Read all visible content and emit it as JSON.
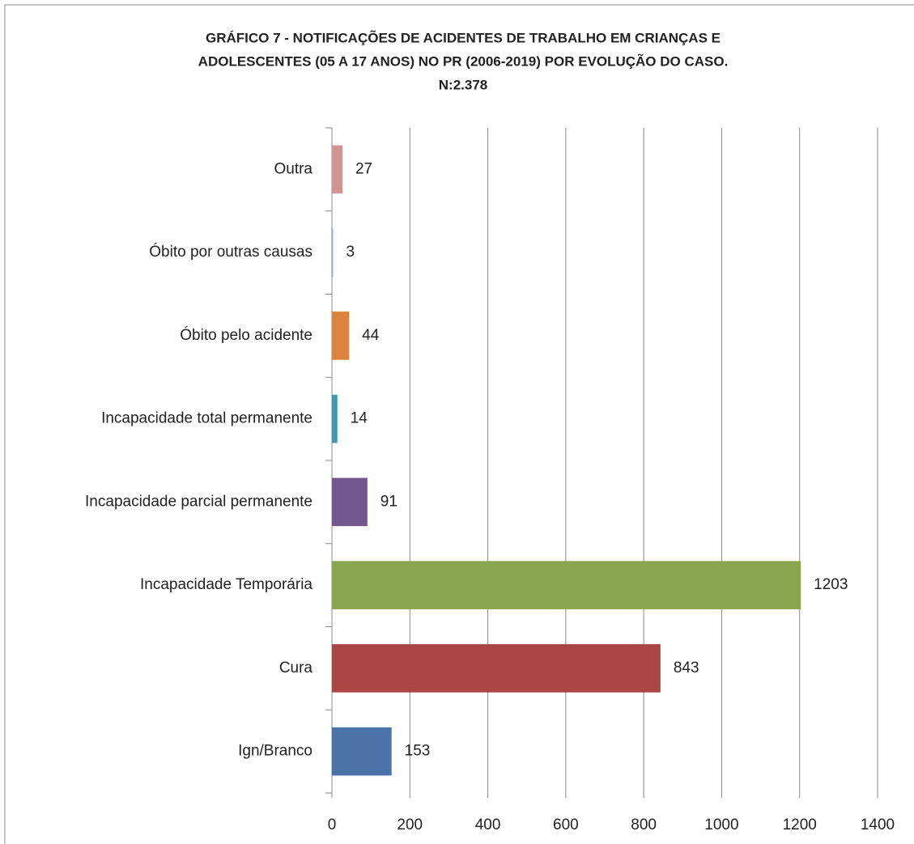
{
  "chart_data": {
    "type": "bar",
    "orientation": "horizontal",
    "title": [
      "GRÁFICO 7 - NOTIFICAÇÕES DE ACIDENTES DE TRABALHO EM CRIANÇAS E",
      "ADOLESCENTES (05 A 17 ANOS) NO PR (2006-2019) POR EVOLUÇÃO DO CASO.",
      "N:2.378"
    ],
    "categories": [
      "Ign/Branco",
      "Cura",
      "Incapacidade Temporária",
      "Incapacidade parcial permanente",
      "Incapacidade total permanente",
      "Óbito pelo acidente",
      "Óbito por outras causas",
      "Outra"
    ],
    "values": [
      153,
      843,
      1203,
      91,
      14,
      44,
      3,
      27
    ],
    "colors": [
      "#4a72a8",
      "#aa4644",
      "#89a54e",
      "#71588f",
      "#4298af",
      "#db843d",
      "#93a9cf",
      "#d09493"
    ],
    "xlim": [
      0,
      1400
    ],
    "xticks": [
      0,
      200,
      400,
      600,
      800,
      1000,
      1200,
      1400
    ],
    "grid": true
  }
}
